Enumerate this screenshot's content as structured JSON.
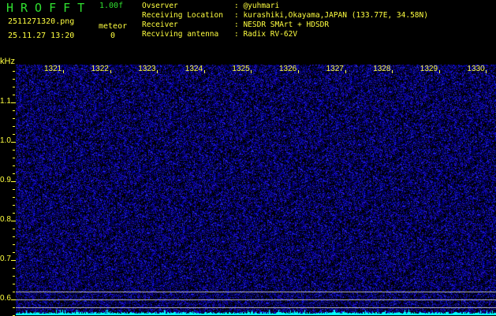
{
  "header": {
    "title": "HROFFT",
    "version": "1.00f",
    "filename": "2511271320.png",
    "datetime": "25.11.27 13:20",
    "meteor_label": "meteor",
    "meteor_count": "0"
  },
  "info": [
    {
      "label": "Ovserver",
      "value": "@yuhmari"
    },
    {
      "label": "Receiving Location",
      "value": "kurashiki,Okayama,JAPAN (133.77E, 34.58N)"
    },
    {
      "label": "Receiver",
      "value": "NESDR SMArt + HDSDR"
    },
    {
      "label": "Recviving antenna",
      "value": "Radix RV-62V"
    }
  ],
  "axis": {
    "y_unit": "kHz",
    "y_ticks": [
      "1.1",
      "1.0",
      "0.9",
      "0.8",
      "0.7",
      "0.6"
    ],
    "x_ticks": [
      "1321",
      "1322",
      "1323",
      "1324",
      "1325",
      "1326",
      "1327",
      "1328",
      "1329",
      "1330"
    ]
  },
  "colors": {
    "text": "#ffff40",
    "title": "#30e030",
    "noise": "#2020c0",
    "signal": "#00ffff"
  }
}
